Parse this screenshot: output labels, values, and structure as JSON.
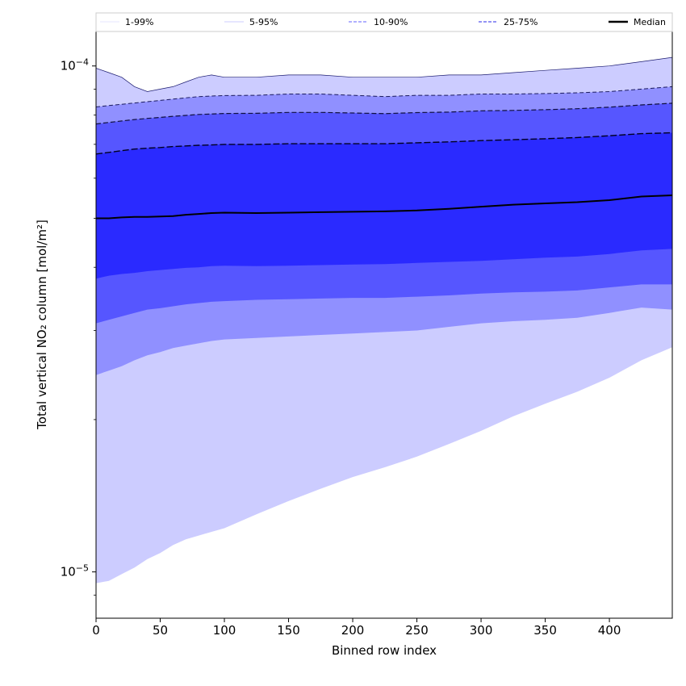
{
  "chart_data": {
    "type": "area",
    "xlabel": "Binned row index",
    "ylabel": "Total vertical NO₂ column [mol/m²]",
    "y_scale": "log",
    "xlim": [
      0,
      449
    ],
    "ylim": [
      8.1e-06,
      0.000117
    ],
    "x_ticks": [
      0,
      50,
      100,
      150,
      200,
      250,
      300,
      350,
      400
    ],
    "x_tick_labels": [
      "0",
      "50",
      "100",
      "150",
      "200",
      "250",
      "300",
      "350",
      "400"
    ],
    "y_ticks": [
      1e-05,
      0.0001
    ],
    "y_tick_labels": [
      {
        "base": "10",
        "exp": "−5"
      },
      {
        "base": "10",
        "exp": "−4"
      }
    ],
    "legend": {
      "placement": "top, above plot",
      "entries": [
        {
          "label": "1-99%",
          "style": "thin",
          "color": "#ccccff"
        },
        {
          "label": "5-95%",
          "style": "thin",
          "color": "#9999ff"
        },
        {
          "label": "10-90%",
          "style": "dashed",
          "color": "#8080ff"
        },
        {
          "label": "25-75%",
          "style": "dashed",
          "color": "#5555ee"
        },
        {
          "label": "Median",
          "style": "solid",
          "color": "#000000"
        }
      ]
    },
    "grid": false,
    "x": [
      0,
      10,
      20,
      30,
      40,
      50,
      60,
      70,
      80,
      90,
      100,
      125,
      150,
      175,
      200,
      225,
      250,
      275,
      300,
      325,
      350,
      375,
      400,
      425,
      449
    ],
    "series": [
      {
        "name": "1-99%",
        "color": "#ccccff",
        "lower": [
          9.5e-06,
          9.6e-06,
          9.9e-06,
          1.02e-05,
          1.06e-05,
          1.09e-05,
          1.13e-05,
          1.16e-05,
          1.18e-05,
          1.2e-05,
          1.22e-05,
          1.3e-05,
          1.38e-05,
          1.46e-05,
          1.54e-05,
          1.61e-05,
          1.69e-05,
          1.79e-05,
          1.9e-05,
          2.03e-05,
          2.15e-05,
          2.27e-05,
          2.42e-05,
          2.62e-05,
          2.78e-05
        ],
        "upper": [
          9.9e-05,
          9.7e-05,
          9.5e-05,
          9.1e-05,
          8.9e-05,
          9e-05,
          9.1e-05,
          9.3e-05,
          9.5e-05,
          9.6e-05,
          9.5e-05,
          9.5e-05,
          9.6e-05,
          9.6e-05,
          9.5e-05,
          9.5e-05,
          9.5e-05,
          9.6e-05,
          9.6e-05,
          9.7e-05,
          9.8e-05,
          9.9e-05,
          0.0001,
          0.000102,
          0.000104
        ]
      },
      {
        "name": "5-95%",
        "color": "#9999ff",
        "lower": [
          2.45e-05,
          2.5e-05,
          2.55e-05,
          2.62e-05,
          2.68e-05,
          2.72e-05,
          2.77e-05,
          2.8e-05,
          2.83e-05,
          2.86e-05,
          2.88e-05,
          2.9e-05,
          2.92e-05,
          2.94e-05,
          2.96e-05,
          2.98e-05,
          3e-05,
          3.05e-05,
          3.1e-05,
          3.13e-05,
          3.15e-05,
          3.18e-05,
          3.25e-05,
          3.33e-05,
          3.3e-05
        ],
        "upper": [
          8.3e-05,
          8.35e-05,
          8.4e-05,
          8.45e-05,
          8.5e-05,
          8.55e-05,
          8.6e-05,
          8.65e-05,
          8.7e-05,
          8.72e-05,
          8.74e-05,
          8.75e-05,
          8.8e-05,
          8.8e-05,
          8.75e-05,
          8.7e-05,
          8.75e-05,
          8.75e-05,
          8.8e-05,
          8.8e-05,
          8.82e-05,
          8.85e-05,
          8.9e-05,
          9e-05,
          9.1e-05
        ]
      },
      {
        "name": "10-90%",
        "color": "#8080ff",
        "lower": [
          3.1e-05,
          3.15e-05,
          3.2e-05,
          3.25e-05,
          3.3e-05,
          3.32e-05,
          3.35e-05,
          3.38e-05,
          3.4e-05,
          3.42e-05,
          3.43e-05,
          3.45e-05,
          3.46e-05,
          3.47e-05,
          3.48e-05,
          3.48e-05,
          3.5e-05,
          3.52e-05,
          3.55e-05,
          3.57e-05,
          3.58e-05,
          3.6e-05,
          3.65e-05,
          3.7e-05,
          3.7e-05
        ]
      },
      {
        "name": "25-75%",
        "color": "#3333ff",
        "lower": [
          3.8e-05,
          3.85e-05,
          3.88e-05,
          3.9e-05,
          3.93e-05,
          3.95e-05,
          3.97e-05,
          3.99e-05,
          4e-05,
          4.02e-05,
          4.03e-05,
          4.02e-05,
          4.03e-05,
          4.04e-05,
          4.05e-05,
          4.06e-05,
          4.08e-05,
          4.1e-05,
          4.12e-05,
          4.15e-05,
          4.18e-05,
          4.2e-05,
          4.25e-05,
          4.32e-05,
          4.35e-05
        ],
        "upper": [
          6.7e-05,
          6.75e-05,
          6.8e-05,
          6.85e-05,
          6.88e-05,
          6.9e-05,
          6.93e-05,
          6.95e-05,
          6.97e-05,
          6.98e-05,
          7e-05,
          7e-05,
          7.02e-05,
          7.02e-05,
          7.02e-05,
          7.02e-05,
          7.05e-05,
          7.08e-05,
          7.12e-05,
          7.15e-05,
          7.18e-05,
          7.22e-05,
          7.28e-05,
          7.35e-05,
          7.38e-05
        ]
      },
      {
        "name": "Median",
        "color": "#000000",
        "values": [
          5e-05,
          5e-05,
          5.02e-05,
          5.03e-05,
          5.03e-05,
          5.04e-05,
          5.05e-05,
          5.08e-05,
          5.1e-05,
          5.12e-05,
          5.13e-05,
          5.12e-05,
          5.13e-05,
          5.14e-05,
          5.15e-05,
          5.16e-05,
          5.18e-05,
          5.22e-05,
          5.27e-05,
          5.32e-05,
          5.35e-05,
          5.38e-05,
          5.43e-05,
          5.52e-05,
          5.55e-05
        ]
      }
    ]
  }
}
